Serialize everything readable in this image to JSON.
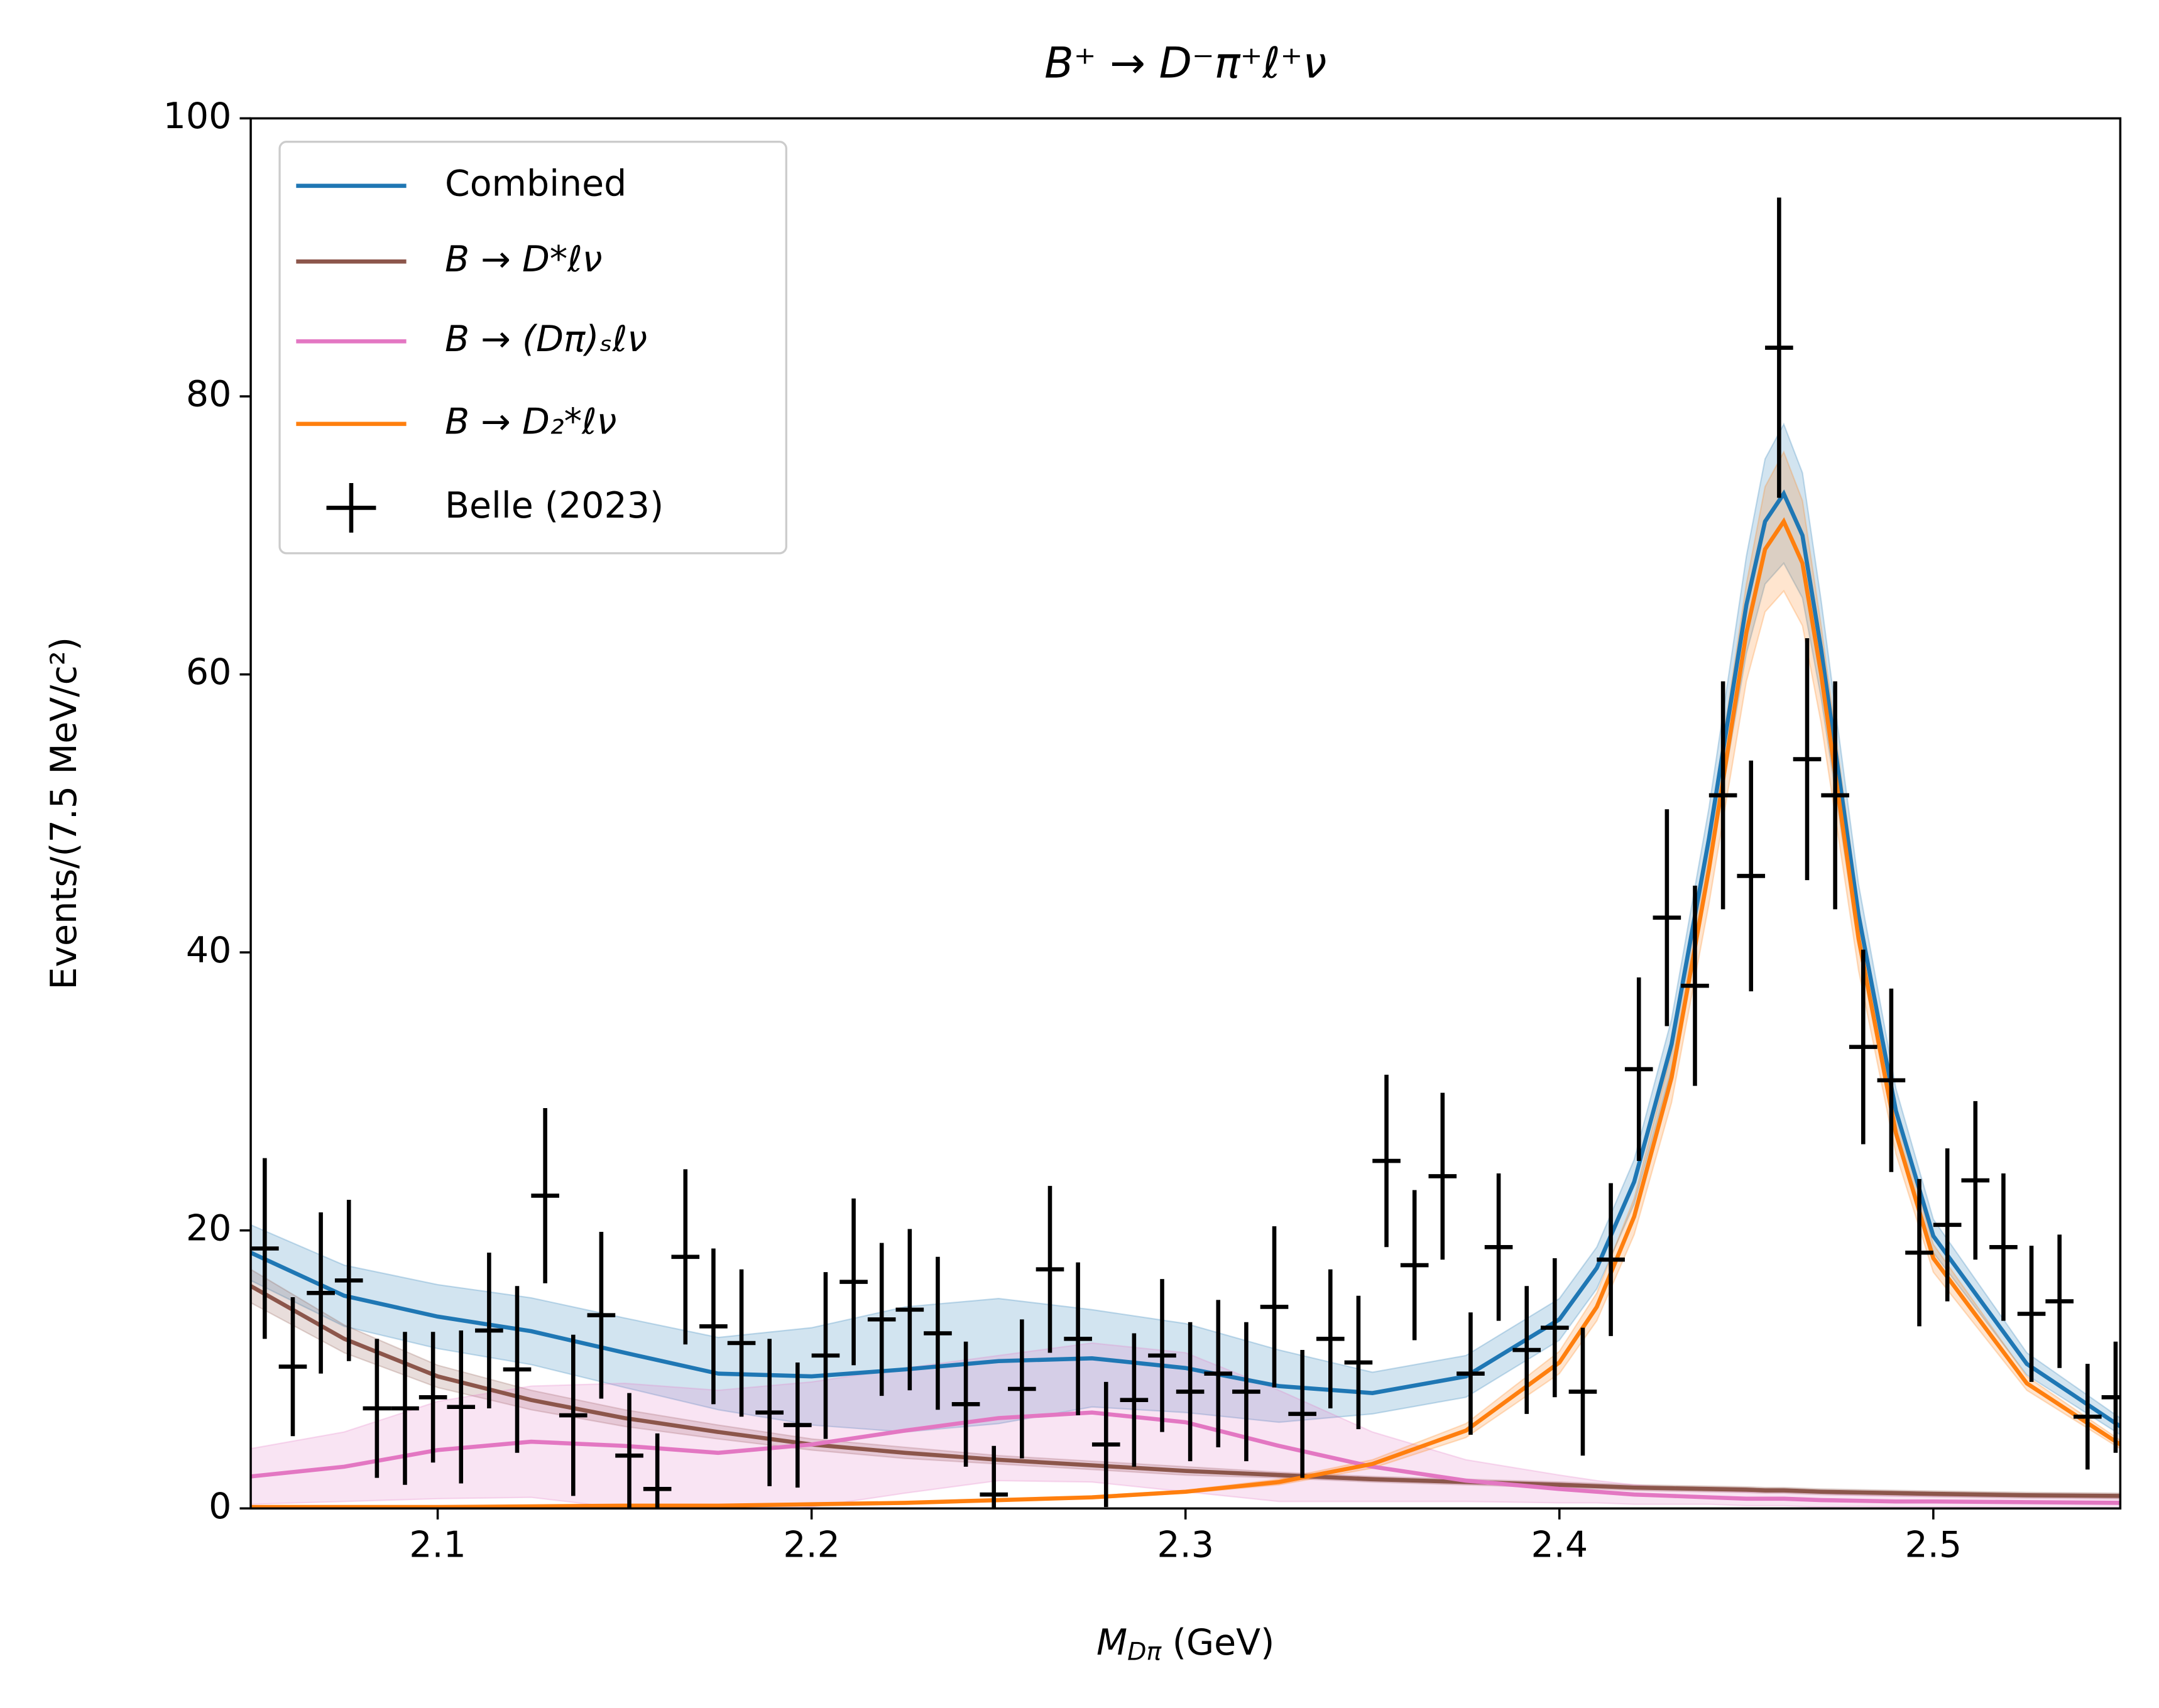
{
  "chart_data": {
    "type": "line",
    "title": "B⁺ → D⁻π⁺ℓ⁺ν",
    "xlabel": {
      "symbol": "M",
      "subscript": "Dπ",
      "unit": "(GeV)"
    },
    "ylabel": "Events/(7.5 MeV/c²)",
    "xlim": [
      2.05,
      2.55
    ],
    "xticks": [
      2.1,
      2.2,
      2.3,
      2.4,
      2.5
    ],
    "ylim": [
      0,
      100
    ],
    "yticks": [
      0,
      20,
      40,
      60,
      80,
      100
    ],
    "legend": "upper left",
    "curve_x": [
      2.05,
      2.075,
      2.1,
      2.125,
      2.15,
      2.175,
      2.2,
      2.225,
      2.25,
      2.275,
      2.3,
      2.325,
      2.35,
      2.375,
      2.4,
      2.41,
      2.42,
      2.43,
      2.44,
      2.45,
      2.455,
      2.46,
      2.465,
      2.47,
      2.48,
      2.49,
      2.5,
      2.525,
      2.55
    ],
    "series": [
      {
        "name": "Combined",
        "color": "#1f77b4",
        "values": [
          18.4,
          15.3,
          13.8,
          12.75,
          11.2,
          9.7,
          9.5,
          10.0,
          10.6,
          10.8,
          10.1,
          8.8,
          8.3,
          9.5,
          13.6,
          17.3,
          23.5,
          33.4,
          48.2,
          65,
          71,
          73,
          70,
          61.8,
          42.7,
          28.6,
          19.6,
          10.4,
          5.9
        ],
        "errors": [
          2,
          2.2,
          2.3,
          2.4,
          2.5,
          2.6,
          3.5,
          4.5,
          4.5,
          3.5,
          3.2,
          2.6,
          1.5,
          1.5,
          1.5,
          1.5,
          1.6,
          1.8,
          2.2,
          3.5,
          4.5,
          5,
          4.5,
          3.5,
          2.2,
          1.6,
          1.2,
          0.8,
          0.6
        ]
      },
      {
        "name": "B → D*ℓν",
        "color": "#8c564b",
        "values": [
          16,
          12.2,
          9.5,
          7.8,
          6.5,
          5.5,
          4.6,
          4.0,
          3.5,
          3.1,
          2.7,
          2.4,
          2.1,
          1.9,
          1.7,
          1.6,
          1.5,
          1.45,
          1.4,
          1.35,
          1.3,
          1.3,
          1.25,
          1.2,
          1.15,
          1.1,
          1.05,
          0.95,
          0.9
        ],
        "errors": [
          1.2,
          1,
          0.8,
          0.7,
          0.6,
          0.5,
          0.4,
          0.4,
          0.3,
          0.3,
          0.3,
          0.2,
          0.2,
          0.2,
          0.2,
          0.2,
          0.2,
          0.2,
          0.2,
          0.2,
          0.2,
          0.2,
          0.2,
          0.2,
          0.2,
          0.2,
          0.2,
          0.2,
          0.2
        ]
      },
      {
        "name": "B → (Dπ)ₛℓν",
        "color": "#e377c2",
        "values": [
          2.3,
          3.0,
          4.2,
          4.8,
          4.5,
          4.0,
          4.6,
          5.6,
          6.5,
          6.9,
          6.2,
          4.5,
          3.0,
          2.0,
          1.4,
          1.2,
          1.0,
          0.9,
          0.8,
          0.7,
          0.7,
          0.7,
          0.65,
          0.6,
          0.55,
          0.5,
          0.5,
          0.45,
          0.4
        ],
        "errors": [
          2,
          2.5,
          3.5,
          4,
          4.5,
          4.5,
          4.5,
          4.5,
          4.5,
          5,
          5,
          4,
          2.5,
          1.5,
          1,
          0.8,
          0.7,
          0.6,
          0.5,
          0.5,
          0.5,
          0.5,
          0.5,
          0.5,
          0.4,
          0.4,
          0.4,
          0.4,
          0.4
        ]
      },
      {
        "name": "B → D₂*ℓν",
        "color": "#ff7f0e",
        "values": [
          0.1,
          0.1,
          0.1,
          0.15,
          0.2,
          0.2,
          0.3,
          0.4,
          0.6,
          0.8,
          1.2,
          1.9,
          3.2,
          5.6,
          10.5,
          14.5,
          21,
          31,
          46,
          63,
          69,
          71,
          68,
          60,
          41,
          27,
          18,
          9,
          4.6
        ],
        "errors": [
          0,
          0,
          0,
          0,
          0,
          0,
          0,
          0,
          0,
          0.1,
          0.1,
          0.2,
          0.3,
          0.5,
          0.8,
          1,
          1.3,
          1.8,
          2.5,
          3.5,
          4.5,
          5,
          4.5,
          3.5,
          2.3,
          1.5,
          1,
          0.5,
          0.3
        ]
      }
    ],
    "points": {
      "name": "Belle (2023)",
      "color": "#000000",
      "xerr": 0.00375,
      "x": [
        2.05375,
        2.06125,
        2.06875,
        2.07625,
        2.08375,
        2.09125,
        2.09875,
        2.10625,
        2.11375,
        2.12125,
        2.12875,
        2.13625,
        2.14375,
        2.15125,
        2.15875,
        2.16625,
        2.17375,
        2.18125,
        2.18875,
        2.19625,
        2.20375,
        2.21125,
        2.21875,
        2.22625,
        2.23375,
        2.24125,
        2.24875,
        2.25625,
        2.26375,
        2.27125,
        2.27875,
        2.28625,
        2.29375,
        2.30125,
        2.30875,
        2.31625,
        2.32375,
        2.33125,
        2.33875,
        2.34625,
        2.35375,
        2.36125,
        2.36875,
        2.37625,
        2.38375,
        2.39125,
        2.39875,
        2.40625,
        2.41375,
        2.42125,
        2.42875,
        2.43625,
        2.44375,
        2.45125,
        2.45875,
        2.46625,
        2.47375,
        2.48125,
        2.48875,
        2.49625,
        2.50375,
        2.51125,
        2.51875,
        2.52625,
        2.53375,
        2.54125,
        2.54875
      ],
      "values": [
        18.7,
        10.2,
        15.5,
        16.4,
        7.2,
        7.2,
        8.0,
        7.3,
        12.8,
        10.0,
        22.5,
        6.7,
        13.9,
        3.8,
        1.4,
        18.1,
        13.1,
        11.9,
        6.9,
        6.0,
        11,
        16.3,
        13.6,
        14.3,
        12.6,
        7.5,
        1.0,
        8.6,
        17.2,
        12.2,
        4.6,
        7.8,
        11,
        8.4,
        9.7,
        8.4,
        14.5,
        6.8,
        12.2,
        10.5,
        25,
        17.5,
        23.9,
        9.7,
        18.8,
        11.4,
        13,
        8.4,
        17.9,
        31.6,
        42.5,
        37.6,
        51.3,
        45.5,
        83.5,
        53.9,
        51.3,
        33.2,
        30.8,
        18.4,
        20.4,
        23.6,
        18.8,
        14,
        14.9,
        6.6,
        8.0
      ],
      "errors": [
        6.5,
        5,
        5.8,
        5.8,
        5,
        5.5,
        4.7,
        5.5,
        5.6,
        6,
        6.3,
        5.8,
        6,
        4.5,
        4,
        6.3,
        5.6,
        5.3,
        5.3,
        4.5,
        6,
        6,
        5.5,
        5.8,
        5.5,
        4.5,
        3.5,
        5,
        6,
        5.5,
        4.5,
        4.8,
        5.5,
        5,
        5.3,
        5,
        5.8,
        4.6,
        5,
        4.8,
        6.2,
        5.4,
        6,
        4.4,
        5.3,
        4.6,
        5,
        4.6,
        5.5,
        6.6,
        7.8,
        7.2,
        8.2,
        8.3,
        10.8,
        8.7,
        8.2,
        7,
        6.6,
        5.3,
        5.5,
        5.7,
        5.3,
        4.9,
        4.8,
        3.8,
        4
      ]
    }
  }
}
